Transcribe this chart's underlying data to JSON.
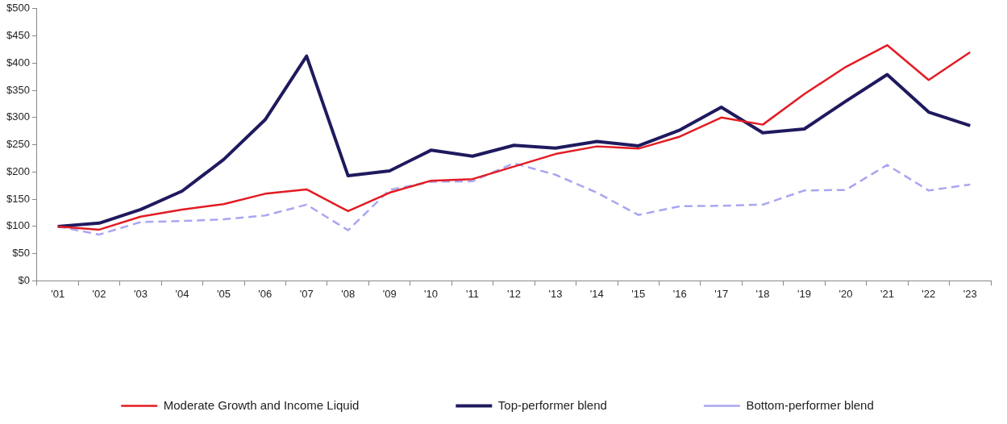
{
  "chart_data": {
    "type": "line",
    "categories": [
      "'01",
      "'02",
      "'03",
      "'04",
      "'05",
      "'06",
      "'07",
      "'08",
      "'09",
      "'10",
      "'11",
      "'12",
      "'13",
      "'14",
      "'15",
      "'16",
      "'17",
      "'18",
      "'19",
      "'20",
      "'21",
      "'22",
      "'23"
    ],
    "series": [
      {
        "name": "Moderate Growth and Income Liquid",
        "color": "#e31b23",
        "line_style": "solid",
        "values": [
          100,
          94,
          118,
          131,
          141,
          160,
          168,
          128,
          162,
          184,
          187,
          210,
          233,
          247,
          243,
          265,
          300,
          287,
          343,
          393,
          433,
          369,
          420
        ]
      },
      {
        "name": "Top-performer blend",
        "color": "#1f1a5e",
        "line_style": "solid",
        "values": [
          100,
          106,
          131,
          165,
          223,
          296,
          413,
          193,
          202,
          240,
          229,
          249,
          244,
          256,
          248,
          277,
          319,
          272,
          279,
          330,
          379,
          310,
          285
        ]
      },
      {
        "name": "Bottom-performer blend",
        "color": "#a9a6f0",
        "line_style": "dashed",
        "values": [
          100,
          85,
          108,
          110,
          113,
          120,
          140,
          93,
          167,
          182,
          183,
          216,
          195,
          162,
          121,
          137,
          138,
          140,
          166,
          167,
          213,
          166,
          177
        ]
      }
    ],
    "ylim": [
      0,
      500
    ],
    "yticks": [
      {
        "value": 0,
        "label": "$0"
      },
      {
        "value": 50,
        "label": "$50"
      },
      {
        "value": 100,
        "label": "$100"
      },
      {
        "value": 150,
        "label": "$150"
      },
      {
        "value": 200,
        "label": "$200"
      },
      {
        "value": 250,
        "label": "$250"
      },
      {
        "value": 300,
        "label": "$300"
      },
      {
        "value": 350,
        "label": "$350"
      },
      {
        "value": 400,
        "label": "$400"
      },
      {
        "value": 450,
        "label": "$450"
      },
      {
        "value": 500,
        "label": "$500"
      }
    ],
    "grid": false,
    "legend": "bottom",
    "marker": "none"
  }
}
